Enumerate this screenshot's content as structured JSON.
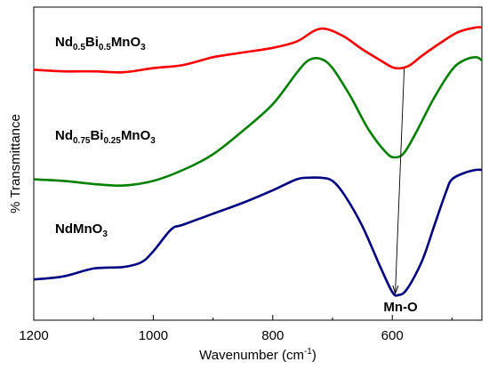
{
  "chart_data": {
    "type": "line",
    "xlabel": "Wavenumber (cm",
    "xlabel_sup": "-1",
    "xlabel_close": ")",
    "ylabel": "% Transmittance",
    "xlim": [
      1200,
      450
    ],
    "x_reversed": true,
    "xticks": [
      "1200",
      "1000",
      "800",
      "600"
    ],
    "xtick_values": [
      1200,
      1000,
      800,
      600
    ],
    "yticks": "none",
    "grid": false,
    "series": [
      {
        "name_parts": [
          [
            "Nd",
            false
          ],
          [
            "0.5",
            true
          ],
          [
            "Bi",
            false
          ],
          [
            "0.5",
            true
          ],
          [
            "MnO",
            false
          ],
          [
            "3",
            true
          ]
        ],
        "color": "#ff0000",
        "x": [
          1200,
          1150,
          1100,
          1050,
          1000,
          950,
          900,
          850,
          800,
          760,
          730,
          710,
          680,
          650,
          620,
          600,
          585,
          570,
          550,
          520,
          490,
          460,
          450
        ],
        "y": [
          3.0,
          2.95,
          2.95,
          2.92,
          3.05,
          3.15,
          3.4,
          3.55,
          3.7,
          3.9,
          4.25,
          4.3,
          4.05,
          3.65,
          3.3,
          3.08,
          3.05,
          3.15,
          3.45,
          3.85,
          4.2,
          4.35,
          4.35
        ]
      },
      {
        "name_parts": [
          [
            "Nd",
            false
          ],
          [
            "0.75",
            true
          ],
          [
            "Bi",
            false
          ],
          [
            "0.25",
            true
          ],
          [
            "MnO",
            false
          ],
          [
            "3",
            true
          ]
        ],
        "color": "#008000",
        "x": [
          1200,
          1150,
          1100,
          1050,
          1000,
          950,
          900,
          850,
          800,
          760,
          740,
          720,
          700,
          670,
          640,
          610,
          595,
          580,
          560,
          530,
          500,
          480,
          460,
          450
        ],
        "y": [
          -0.5,
          -0.55,
          -0.65,
          -0.7,
          -0.55,
          -0.2,
          0.3,
          1.05,
          1.9,
          2.9,
          3.3,
          3.35,
          3.05,
          2.15,
          1.1,
          0.35,
          0.2,
          0.35,
          1.0,
          2.1,
          3.0,
          3.3,
          3.4,
          3.3
        ]
      },
      {
        "name_parts": [
          [
            "NdMnO",
            false
          ],
          [
            "3",
            true
          ]
        ],
        "color": "#000080",
        "x": [
          1200,
          1150,
          1100,
          1050,
          1020,
          1000,
          970,
          950,
          900,
          850,
          800,
          760,
          740,
          720,
          700,
          680,
          650,
          620,
          600,
          590,
          575,
          550,
          530,
          510,
          500,
          480,
          460,
          450
        ],
        "y": [
          -3.7,
          -3.6,
          -3.35,
          -3.3,
          -3.15,
          -2.8,
          -2.1,
          -1.95,
          -1.6,
          -1.25,
          -0.85,
          -0.5,
          -0.45,
          -0.45,
          -0.55,
          -1.0,
          -2.0,
          -3.3,
          -4.1,
          -4.2,
          -4.0,
          -3.1,
          -2.0,
          -0.9,
          -0.5,
          -0.3,
          -0.2,
          -0.2
        ]
      }
    ],
    "annotation": {
      "text": "Mn-O",
      "arrow_from": [
        580,
        3.05
      ],
      "arrow_to": [
        595,
        -4.15
      ]
    }
  }
}
